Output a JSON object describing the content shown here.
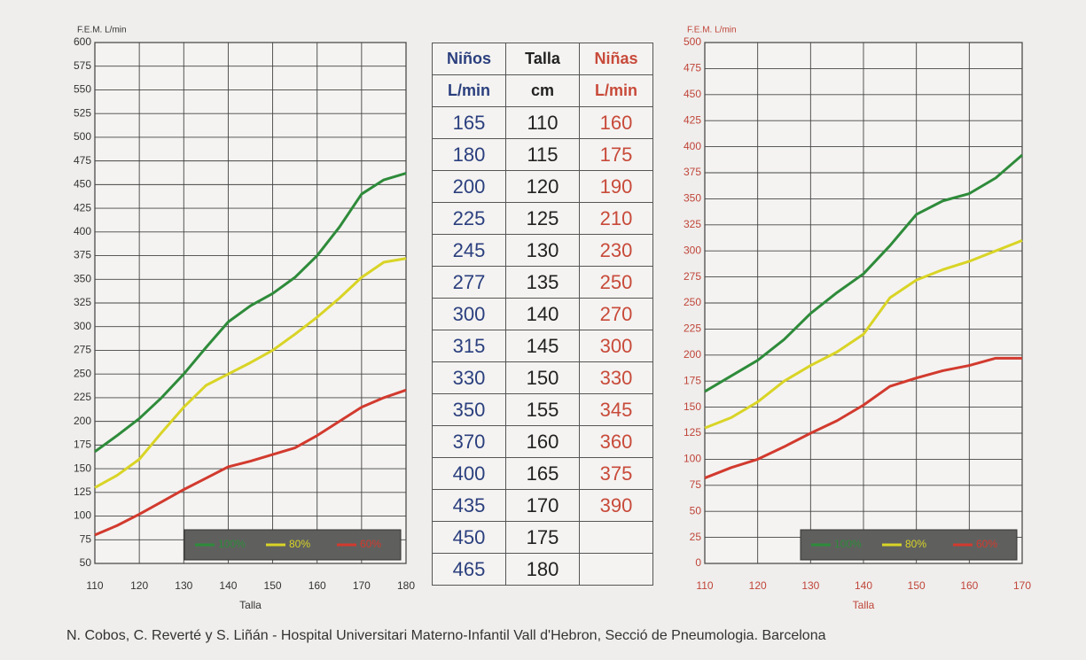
{
  "chart_data": [
    {
      "type": "line",
      "ylabel": "F.E.M.  L/min",
      "xlabel": "Talla",
      "x": [
        110,
        115,
        120,
        125,
        130,
        135,
        140,
        145,
        150,
        155,
        160,
        165,
        170,
        175,
        180
      ],
      "series": [
        {
          "name": "100%",
          "color": "#2e8b3a",
          "values": [
            168,
            185,
            203,
            225,
            250,
            278,
            305,
            322,
            335,
            352,
            375,
            405,
            440,
            455,
            462
          ]
        },
        {
          "name": "80%",
          "color": "#d9d426",
          "values": [
            130,
            143,
            160,
            188,
            215,
            238,
            250,
            262,
            275,
            292,
            310,
            330,
            352,
            368,
            372
          ]
        },
        {
          "name": "60%",
          "color": "#d23a2e",
          "values": [
            80,
            90,
            102,
            115,
            128,
            140,
            152,
            158,
            165,
            172,
            185,
            200,
            215,
            225,
            233
          ]
        }
      ],
      "xlim": [
        110,
        180
      ],
      "xticks": [
        110,
        120,
        130,
        140,
        150,
        160,
        170,
        180
      ],
      "ylim": [
        50,
        600
      ],
      "yticks": [
        50,
        75,
        100,
        125,
        150,
        175,
        200,
        225,
        250,
        275,
        300,
        325,
        350,
        375,
        400,
        425,
        450,
        475,
        500,
        525,
        550,
        575,
        600
      ],
      "grid": true,
      "legend": "lower right",
      "tick_color": "#333333"
    },
    {
      "type": "line",
      "ylabel": "F.E.M.  L/min",
      "xlabel": "Talla",
      "x": [
        110,
        115,
        120,
        125,
        130,
        135,
        140,
        145,
        150,
        155,
        160,
        165,
        170
      ],
      "series": [
        {
          "name": "100%",
          "color": "#2e8b3a",
          "values": [
            165,
            180,
            195,
            215,
            240,
            260,
            278,
            305,
            335,
            348,
            355,
            370,
            392
          ]
        },
        {
          "name": "80%",
          "color": "#d9d426",
          "values": [
            130,
            140,
            155,
            175,
            190,
            203,
            220,
            255,
            272,
            282,
            290,
            300,
            310
          ]
        },
        {
          "name": "60%",
          "color": "#d23a2e",
          "values": [
            82,
            92,
            100,
            112,
            125,
            137,
            152,
            170,
            178,
            185,
            190,
            197,
            197
          ]
        }
      ],
      "xlim": [
        110,
        170
      ],
      "xticks": [
        110,
        120,
        130,
        140,
        150,
        160,
        170
      ],
      "ylim": [
        0,
        500
      ],
      "yticks": [
        0,
        25,
        50,
        75,
        100,
        125,
        150,
        175,
        200,
        225,
        250,
        275,
        300,
        325,
        350,
        375,
        400,
        425,
        450,
        475,
        500
      ],
      "grid": true,
      "legend": "lower right",
      "tick_color": "#c0453a"
    }
  ],
  "table": {
    "header": [
      [
        "Niños",
        "Talla",
        "Niñas"
      ],
      [
        "L/min",
        "cm",
        "L/min"
      ]
    ],
    "rows": [
      [
        165,
        110,
        160
      ],
      [
        180,
        115,
        175
      ],
      [
        200,
        120,
        190
      ],
      [
        225,
        125,
        210
      ],
      [
        245,
        130,
        230
      ],
      [
        277,
        135,
        250
      ],
      [
        300,
        140,
        270
      ],
      [
        315,
        145,
        300
      ],
      [
        330,
        150,
        330
      ],
      [
        350,
        155,
        345
      ],
      [
        370,
        160,
        360
      ],
      [
        400,
        165,
        375
      ],
      [
        435,
        170,
        390
      ],
      [
        450,
        175
      ],
      [
        465,
        180
      ]
    ]
  },
  "footer": "N. Cobos, C. Reverté y S. Liñán - Hospital Universitari Materno-Infantil Vall d'Hebron, Secció de Pneumologia. Barcelona"
}
